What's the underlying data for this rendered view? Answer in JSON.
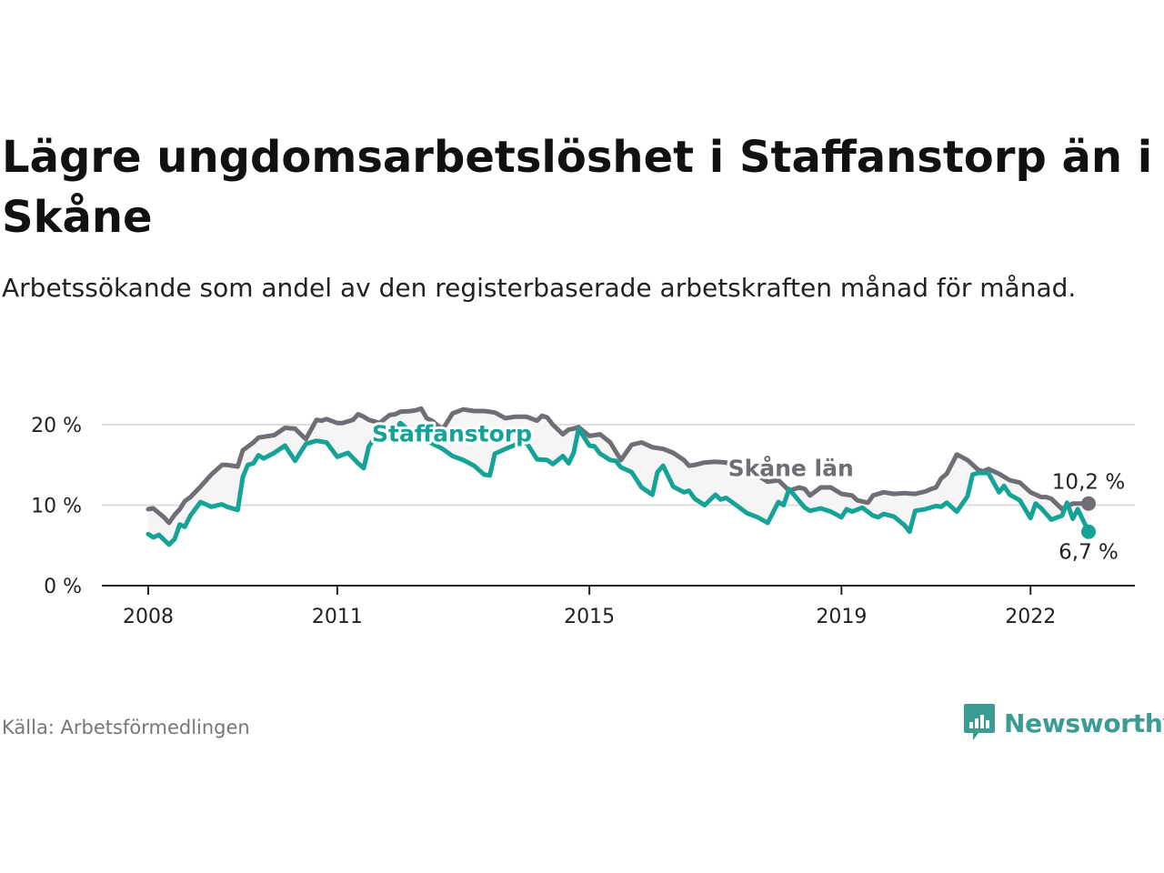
{
  "title": "Lägre ungdomsarbetslöshet i Staffanstorp än i Skåne",
  "subtitle": "Arbetssökande som andel av den registerbaserade arbetskraften månad för månad.",
  "source": "Källa: Arbetsförmedlingen",
  "brand": "Newsworthy",
  "colors": {
    "staffanstorp": "#14a396",
    "skane": "#6e6e74",
    "fill": "#f5f5f6",
    "grid": "#dddddd",
    "brand": "#3a9c92"
  },
  "chart_data": {
    "type": "line",
    "title": "Lägre ungdomsarbetslöshet i Staffanstorp än i Skåne",
    "xlabel": "",
    "ylabel": "",
    "ylim": [
      0,
      20
    ],
    "xlim": [
      2008.0,
      2022.92
    ],
    "y_ticks": [
      0,
      10,
      20
    ],
    "y_tick_labels": [
      "0 %",
      "10 %",
      "20 %"
    ],
    "x_ticks": [
      2008,
      2011,
      2015,
      2019,
      2022
    ],
    "x_tick_labels": [
      "2008",
      "2011",
      "2015",
      "2019",
      "2022"
    ],
    "series": [
      {
        "name": "Skåne län",
        "label": "Skåne län",
        "end_label": "10,2 %",
        "x": [
          2008.0,
          2008.08,
          2008.25,
          2008.33,
          2008.42,
          2008.5,
          2008.58,
          2008.67,
          2008.83,
          2009.0,
          2009.17,
          2009.25,
          2009.42,
          2009.5,
          2009.67,
          2009.75,
          2009.83,
          2010.0,
          2010.17,
          2010.33,
          2010.5,
          2010.67,
          2010.75,
          2010.83,
          2011.0,
          2011.08,
          2011.25,
          2011.33,
          2011.42,
          2011.5,
          2011.67,
          2011.83,
          2011.92,
          2012.0,
          2012.17,
          2012.25,
          2012.33,
          2012.42,
          2012.5,
          2012.67,
          2012.83,
          2013.0,
          2013.17,
          2013.33,
          2013.42,
          2013.5,
          2013.67,
          2013.83,
          2014.0,
          2014.17,
          2014.25,
          2014.33,
          2014.42,
          2014.58,
          2014.67,
          2014.75,
          2014.83,
          2015.0,
          2015.17,
          2015.33,
          2015.5,
          2015.67,
          2015.83,
          2016.0,
          2016.17,
          2016.33,
          2016.5,
          2016.58,
          2016.67,
          2016.83,
          2017.0,
          2017.17,
          2017.33,
          2017.5,
          2017.67,
          2017.83,
          2018.0,
          2018.17,
          2018.33,
          2018.42,
          2018.5,
          2018.67,
          2018.83,
          2019.0,
          2019.17,
          2019.25,
          2019.42,
          2019.5,
          2019.67,
          2019.83,
          2020.0,
          2020.17,
          2020.33,
          2020.42,
          2020.5,
          2020.58,
          2020.67,
          2020.83,
          2021.0,
          2021.17,
          2021.25,
          2021.33,
          2021.5,
          2021.67,
          2021.83,
          2022.0,
          2022.17,
          2022.25,
          2022.33,
          2022.5,
          2022.67,
          2022.83,
          2022.92
        ],
        "values": [
          9.5,
          9.6,
          8.5,
          7.8,
          8.8,
          9.5,
          10.5,
          11.0,
          12.3,
          13.8,
          15.0,
          15.0,
          14.8,
          16.8,
          17.8,
          18.4,
          18.5,
          18.7,
          19.6,
          19.5,
          18.2,
          20.6,
          20.5,
          20.7,
          20.2,
          20.2,
          20.6,
          21.3,
          21.0,
          20.6,
          20.2,
          21.2,
          21.3,
          21.6,
          21.7,
          21.8,
          22.0,
          20.8,
          20.5,
          19.4,
          21.4,
          21.9,
          21.7,
          21.7,
          21.6,
          21.5,
          20.8,
          21.0,
          21.0,
          20.5,
          21.1,
          20.9,
          20.0,
          18.8,
          19.4,
          19.5,
          19.7,
          18.6,
          18.8,
          17.8,
          15.6,
          17.5,
          17.8,
          17.2,
          17.0,
          16.5,
          15.6,
          14.9,
          15.0,
          15.3,
          15.4,
          15.3,
          14.6,
          14.8,
          13.7,
          12.9,
          13.1,
          11.8,
          12.2,
          12.0,
          11.2,
          12.2,
          12.2,
          11.4,
          11.2,
          10.6,
          10.3,
          11.2,
          11.6,
          11.4,
          11.5,
          11.4,
          11.7,
          12.0,
          12.2,
          13.3,
          13.9,
          16.3,
          15.6,
          14.4,
          14.2,
          14.5,
          13.9,
          13.1,
          12.8,
          11.6,
          11.0,
          11.0,
          10.8,
          9.5,
          10.2,
          10.2,
          10.2
        ]
      },
      {
        "name": "Staffanstorp",
        "label": "Staffanstorp",
        "end_label": "6,7 %",
        "x": [
          2008.0,
          2008.08,
          2008.17,
          2008.33,
          2008.42,
          2008.5,
          2008.58,
          2008.67,
          2008.83,
          2009.0,
          2009.17,
          2009.25,
          2009.42,
          2009.5,
          2009.58,
          2009.67,
          2009.75,
          2009.83,
          2010.0,
          2010.17,
          2010.33,
          2010.5,
          2010.67,
          2010.75,
          2010.83,
          2011.0,
          2011.17,
          2011.33,
          2011.42,
          2011.5,
          2011.67,
          2011.83,
          2012.0,
          2012.17,
          2012.33,
          2012.5,
          2012.67,
          2012.83,
          2013.0,
          2013.17,
          2013.33,
          2013.42,
          2013.5,
          2013.67,
          2013.83,
          2014.0,
          2014.17,
          2014.33,
          2014.42,
          2014.58,
          2014.67,
          2014.75,
          2014.83,
          2015.0,
          2015.08,
          2015.17,
          2015.33,
          2015.42,
          2015.5,
          2015.67,
          2015.83,
          2016.0,
          2016.08,
          2016.17,
          2016.33,
          2016.5,
          2016.58,
          2016.67,
          2016.83,
          2017.0,
          2017.08,
          2017.17,
          2017.33,
          2017.5,
          2017.67,
          2017.83,
          2018.0,
          2018.08,
          2018.17,
          2018.33,
          2018.42,
          2018.5,
          2018.67,
          2018.83,
          2019.0,
          2019.08,
          2019.17,
          2019.33,
          2019.5,
          2019.58,
          2019.67,
          2019.83,
          2020.0,
          2020.08,
          2020.17,
          2020.33,
          2020.5,
          2020.58,
          2020.67,
          2020.83,
          2021.0,
          2021.08,
          2021.17,
          2021.33,
          2021.5,
          2021.58,
          2021.67,
          2021.83,
          2022.0,
          2022.08,
          2022.17,
          2022.33,
          2022.5,
          2022.58,
          2022.67,
          2022.75,
          2022.92
        ],
        "values": [
          6.4,
          6.0,
          6.3,
          5.1,
          5.8,
          7.6,
          7.3,
          8.7,
          10.4,
          9.8,
          10.1,
          9.8,
          9.4,
          13.5,
          15.0,
          15.2,
          16.2,
          15.8,
          16.5,
          17.4,
          15.5,
          17.6,
          18.0,
          17.9,
          17.8,
          16.0,
          16.5,
          15.2,
          14.6,
          17.3,
          19.2,
          18.6,
          20.2,
          19.1,
          18.2,
          17.7,
          17.0,
          16.1,
          15.6,
          14.9,
          13.8,
          13.7,
          16.4,
          17.0,
          17.5,
          17.8,
          15.7,
          15.6,
          15.1,
          16.1,
          15.2,
          16.5,
          19.5,
          17.4,
          17.3,
          16.4,
          15.6,
          15.5,
          14.7,
          14.1,
          12.2,
          11.3,
          14.1,
          14.9,
          12.3,
          11.6,
          11.8,
          10.8,
          10.0,
          11.3,
          10.7,
          10.9,
          10.0,
          9.0,
          8.5,
          7.8,
          10.4,
          10.0,
          12.0,
          10.5,
          9.7,
          9.3,
          9.6,
          9.2,
          8.5,
          9.5,
          9.2,
          9.7,
          8.7,
          8.5,
          8.9,
          8.6,
          7.5,
          6.7,
          9.3,
          9.5,
          9.9,
          9.8,
          10.3,
          9.2,
          11.1,
          13.8,
          14.0,
          14.0,
          11.6,
          12.4,
          11.3,
          10.6,
          8.4,
          10.2,
          9.6,
          8.2,
          8.7,
          10.3,
          8.3,
          9.5,
          6.7
        ]
      }
    ],
    "annotations": [
      "Staffanstorp",
      "Skåne län",
      "10,2 %",
      "6,7 %"
    ]
  }
}
